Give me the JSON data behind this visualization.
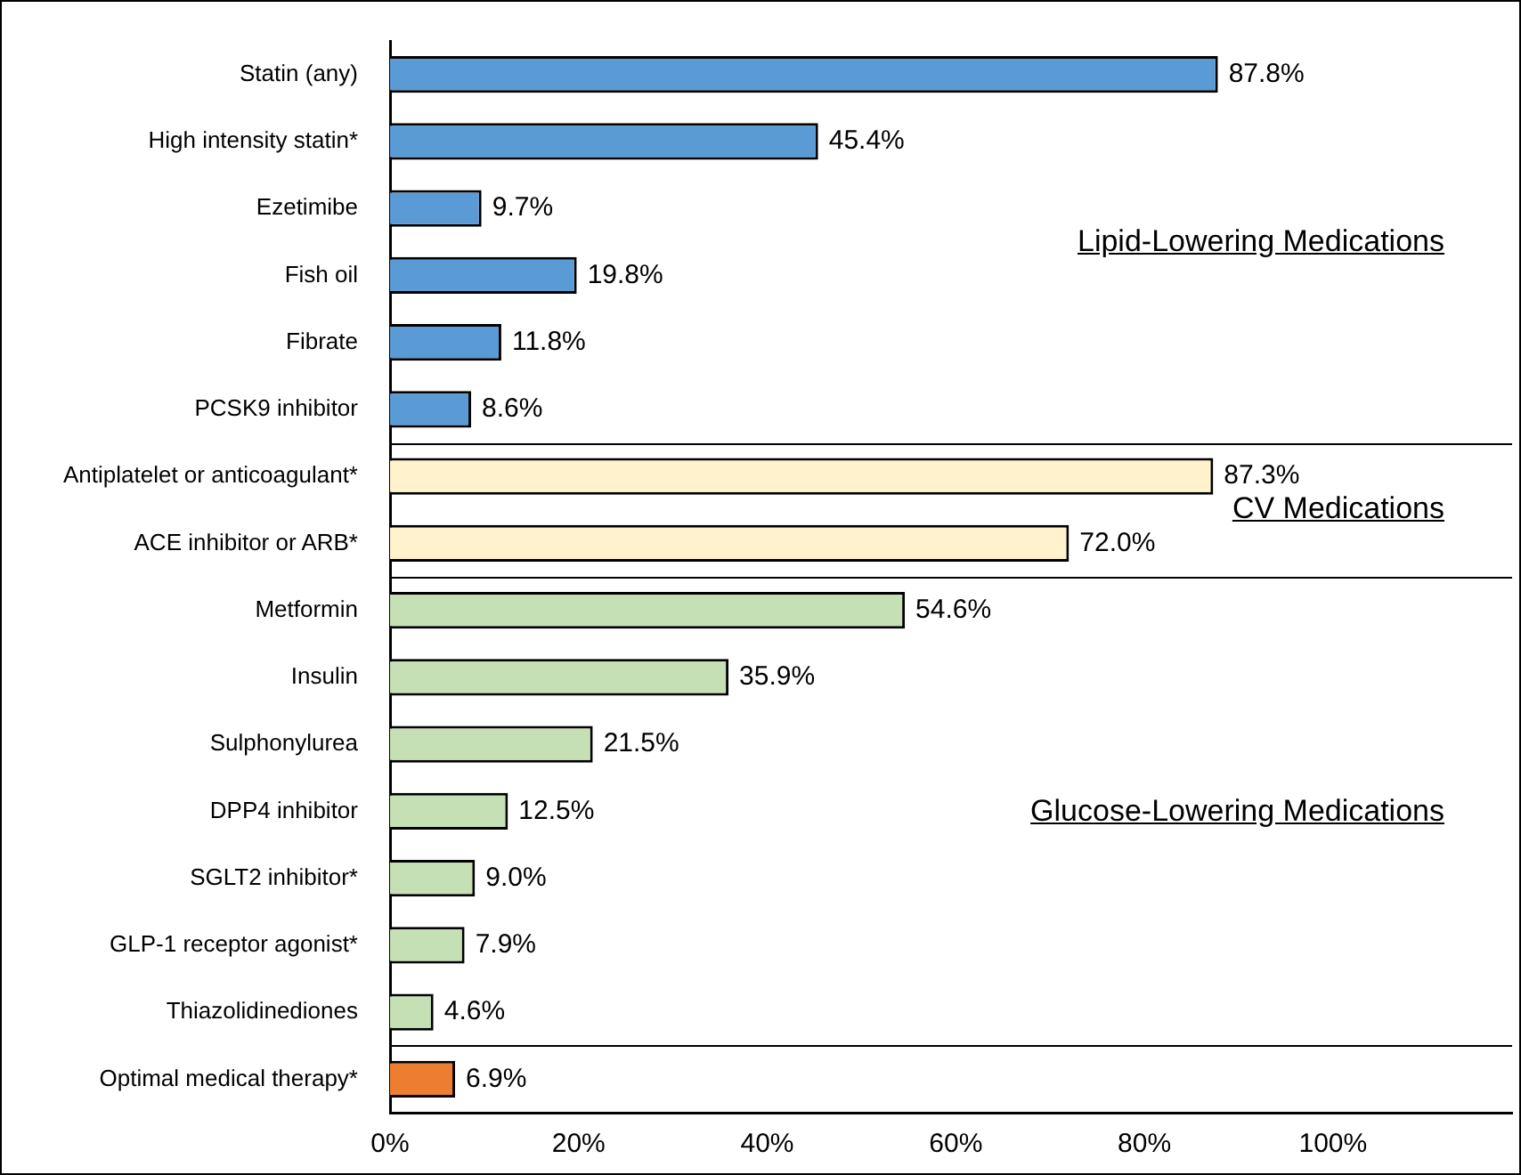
{
  "chart_data": {
    "type": "bar",
    "orientation": "horizontal",
    "categories": [
      "Statin (any)",
      "High intensity statin*",
      "Ezetimibe",
      "Fish oil",
      "Fibrate",
      "PCSK9 inhibitor",
      "Antiplatelet or anticoagulant*",
      "ACE inhibitor or ARB*",
      "Metformin",
      "Insulin",
      "Sulphonylurea",
      "DPP4 inhibitor",
      "SGLT2 inhibitor*",
      "GLP-1 receptor agonist*",
      "Thiazolidinediones",
      "Optimal medical therapy*"
    ],
    "values": [
      87.8,
      45.4,
      9.7,
      19.8,
      11.8,
      8.6,
      87.3,
      72.0,
      54.6,
      35.9,
      21.5,
      12.5,
      9.0,
      7.9,
      4.6,
      6.9
    ],
    "value_labels": [
      "87.8%",
      "45.4%",
      "9.7%",
      "19.8%",
      "11.8%",
      "8.6%",
      "87.3%",
      "72.0%",
      "54.6%",
      "35.9%",
      "21.5%",
      "12.5%",
      "9.0%",
      "7.9%",
      "4.6%",
      "6.9%"
    ],
    "colors": [
      "#5b9bd5",
      "#5b9bd5",
      "#5b9bd5",
      "#5b9bd5",
      "#5b9bd5",
      "#5b9bd5",
      "#fff2cc",
      "#fff2cc",
      "#c5e0b4",
      "#c5e0b4",
      "#c5e0b4",
      "#c5e0b4",
      "#c5e0b4",
      "#c5e0b4",
      "#c5e0b4",
      "#ed7d31"
    ],
    "xlim": [
      0,
      119
    ],
    "xticks": [
      {
        "value": 0,
        "label": "0%"
      },
      {
        "value": 20,
        "label": "20%"
      },
      {
        "value": 40,
        "label": "40%"
      },
      {
        "value": 60,
        "label": "60%"
      },
      {
        "value": 80,
        "label": "80%"
      },
      {
        "value": 100,
        "label": "100%"
      }
    ],
    "annotations": [
      "Lipid-Lowering Medications",
      "CV Medications",
      "Glucose-Lowering Medications"
    ],
    "grid": false,
    "legend": false
  }
}
